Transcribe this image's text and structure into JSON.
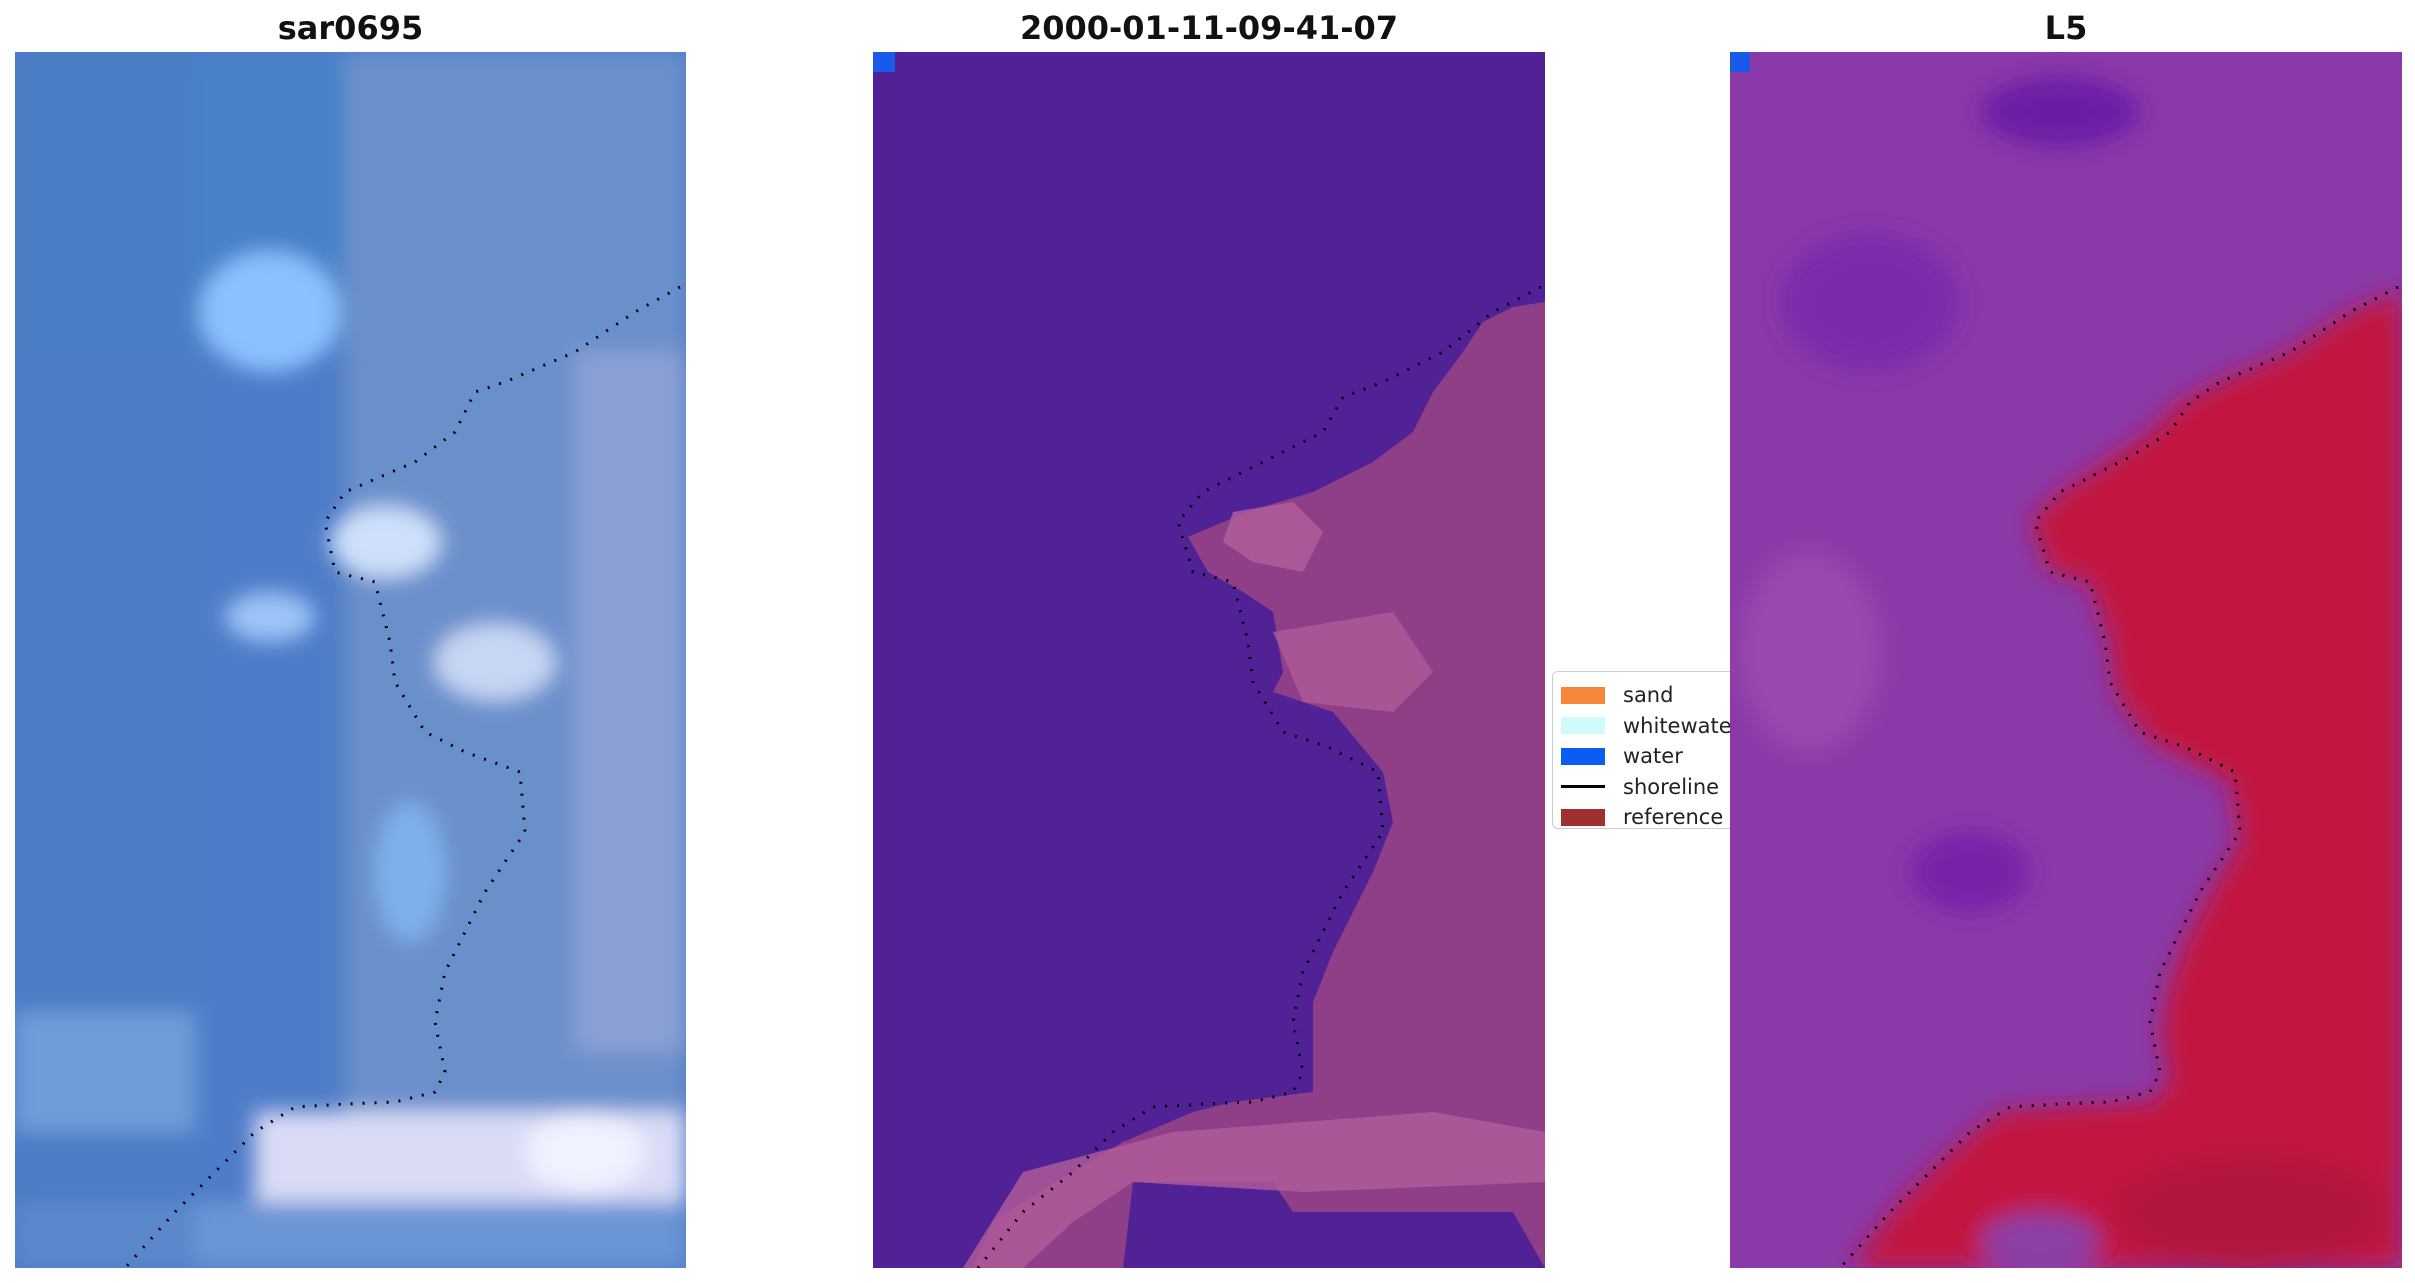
{
  "panels": [
    {
      "id": "rgb",
      "title": "sar0695"
    },
    {
      "id": "classified",
      "title": "2000-01-11-09-41-07"
    },
    {
      "id": "index",
      "title": "L5"
    }
  ],
  "legend": {
    "items": [
      {
        "label": "sand",
        "color": "#f5883a",
        "kind": "patch"
      },
      {
        "label": "whitewater",
        "color": "#cffbfb",
        "kind": "patch"
      },
      {
        "label": "water",
        "color": "#0a5df0",
        "kind": "patch"
      },
      {
        "label": "shoreline",
        "color": "#000000",
        "kind": "line"
      },
      {
        "label": "reference shoreline",
        "color": "#a03030",
        "kind": "patch"
      }
    ]
  },
  "colors": {
    "water_class": "#512296",
    "land_class": "#8f3f88",
    "land_light": "#b25c9a",
    "water_marker": "#1a5ae8",
    "rgb_base": "#4e7fc6",
    "index_land": "#c21640",
    "index_water": "#8a3aa8",
    "shoreline": "#000000"
  }
}
